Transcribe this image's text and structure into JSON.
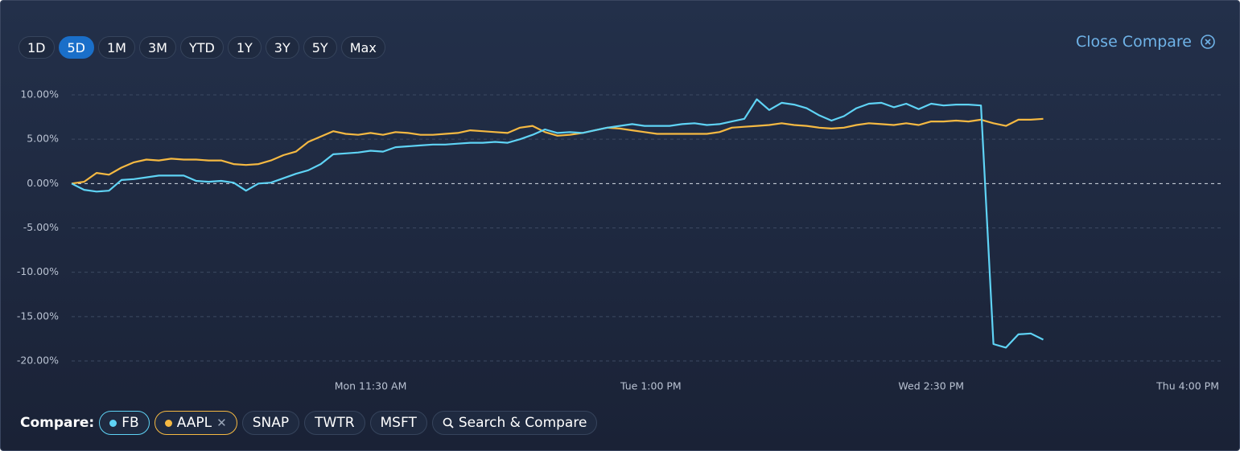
{
  "range_buttons": [
    {
      "label": "1D"
    },
    {
      "label": "5D",
      "selected": true
    },
    {
      "label": "1M"
    },
    {
      "label": "3M"
    },
    {
      "label": "YTD"
    },
    {
      "label": "1Y"
    },
    {
      "label": "3Y"
    },
    {
      "label": "5Y"
    },
    {
      "label": "Max"
    }
  ],
  "close_compare": "Close Compare",
  "chart_data": {
    "type": "line",
    "grid": true,
    "x": [
      0,
      2,
      4,
      6,
      8,
      10,
      12,
      14,
      16,
      18,
      20,
      22,
      24,
      26,
      28,
      30,
      32,
      34,
      36,
      38,
      40,
      42,
      44,
      46,
      48,
      50,
      52,
      54,
      56,
      58,
      60,
      62,
      64,
      66,
      68,
      70,
      72,
      74,
      76,
      78,
      80,
      82,
      84,
      86,
      88,
      90,
      92,
      94,
      96,
      98,
      100,
      102,
      104,
      106,
      108,
      110,
      112,
      114,
      116,
      118,
      120,
      122,
      124,
      126,
      128,
      130,
      132,
      134,
      136,
      138,
      140,
      142,
      144,
      146,
      148,
      150,
      152,
      154,
      156
    ],
    "xlim": [
      0,
      185
    ],
    "xticks": [
      {
        "value": 48,
        "label": "Mon 11:30 AM"
      },
      {
        "value": 93,
        "label": "Tue 1:00 PM"
      },
      {
        "value": 138,
        "label": "Wed 2:30 PM"
      },
      {
        "value": 183,
        "label": "Thu 4:00 PM"
      }
    ],
    "ylim": [
      -20,
      10
    ],
    "yticks": [
      {
        "value": 10,
        "label": "10.00%"
      },
      {
        "value": 5,
        "label": "5.00%"
      },
      {
        "value": 0,
        "label": "0.00%"
      },
      {
        "value": -5,
        "label": "-5.00%"
      },
      {
        "value": -10,
        "label": "-10.00%"
      },
      {
        "value": -15,
        "label": "-15.00%"
      },
      {
        "value": -20,
        "label": "-20.00%"
      }
    ],
    "series": [
      {
        "name": "FB",
        "color": "#5fd3f5",
        "values": [
          0,
          -0.7,
          -0.9,
          -0.8,
          0.4,
          0.5,
          0.7,
          0.9,
          0.9,
          0.9,
          0.3,
          0.2,
          0.3,
          0.1,
          -0.8,
          0.0,
          0.1,
          0.6,
          1.1,
          1.5,
          2.2,
          3.3,
          3.4,
          3.5,
          3.7,
          3.6,
          4.1,
          4.2,
          4.3,
          4.4,
          4.4,
          4.5,
          4.6,
          4.6,
          4.7,
          4.6,
          5.0,
          5.5,
          6.1,
          5.7,
          5.8,
          5.7,
          6.0,
          6.3,
          6.5,
          6.7,
          6.5,
          6.5,
          6.5,
          6.7,
          6.8,
          6.6,
          6.7,
          7.0,
          7.3,
          9.5,
          8.3,
          9.1,
          8.9,
          8.5,
          7.7,
          7.1,
          7.6,
          8.5,
          9.0,
          9.1,
          8.6,
          9.0,
          8.4,
          9.0,
          8.8,
          8.9,
          8.9,
          8.8,
          -18.1,
          -18.5,
          -17.0,
          -16.9,
          -17.6
        ]
      },
      {
        "name": "AAPL",
        "color": "#f5b942",
        "values": [
          0,
          0.2,
          1.2,
          1.0,
          1.8,
          2.4,
          2.7,
          2.6,
          2.8,
          2.7,
          2.7,
          2.6,
          2.6,
          2.2,
          2.1,
          2.2,
          2.6,
          3.2,
          3.6,
          4.7,
          5.3,
          5.9,
          5.6,
          5.5,
          5.7,
          5.5,
          5.8,
          5.7,
          5.5,
          5.5,
          5.6,
          5.7,
          6.0,
          5.9,
          5.8,
          5.7,
          6.3,
          6.5,
          5.8,
          5.4,
          5.5,
          5.7,
          6.0,
          6.3,
          6.2,
          6.0,
          5.8,
          5.6,
          5.6,
          5.6,
          5.6,
          5.6,
          5.8,
          6.3,
          6.4,
          6.5,
          6.6,
          6.8,
          6.6,
          6.5,
          6.3,
          6.2,
          6.3,
          6.6,
          6.8,
          6.7,
          6.6,
          6.8,
          6.6,
          7.0,
          7.0,
          7.1,
          7.0,
          7.2,
          6.8,
          6.5,
          7.2,
          7.2,
          7.3
        ]
      }
    ]
  },
  "compare": {
    "label": "Compare:",
    "suggestions": [
      "SNAP",
      "TWTR",
      "MSFT"
    ],
    "search": "Search & Compare"
  }
}
